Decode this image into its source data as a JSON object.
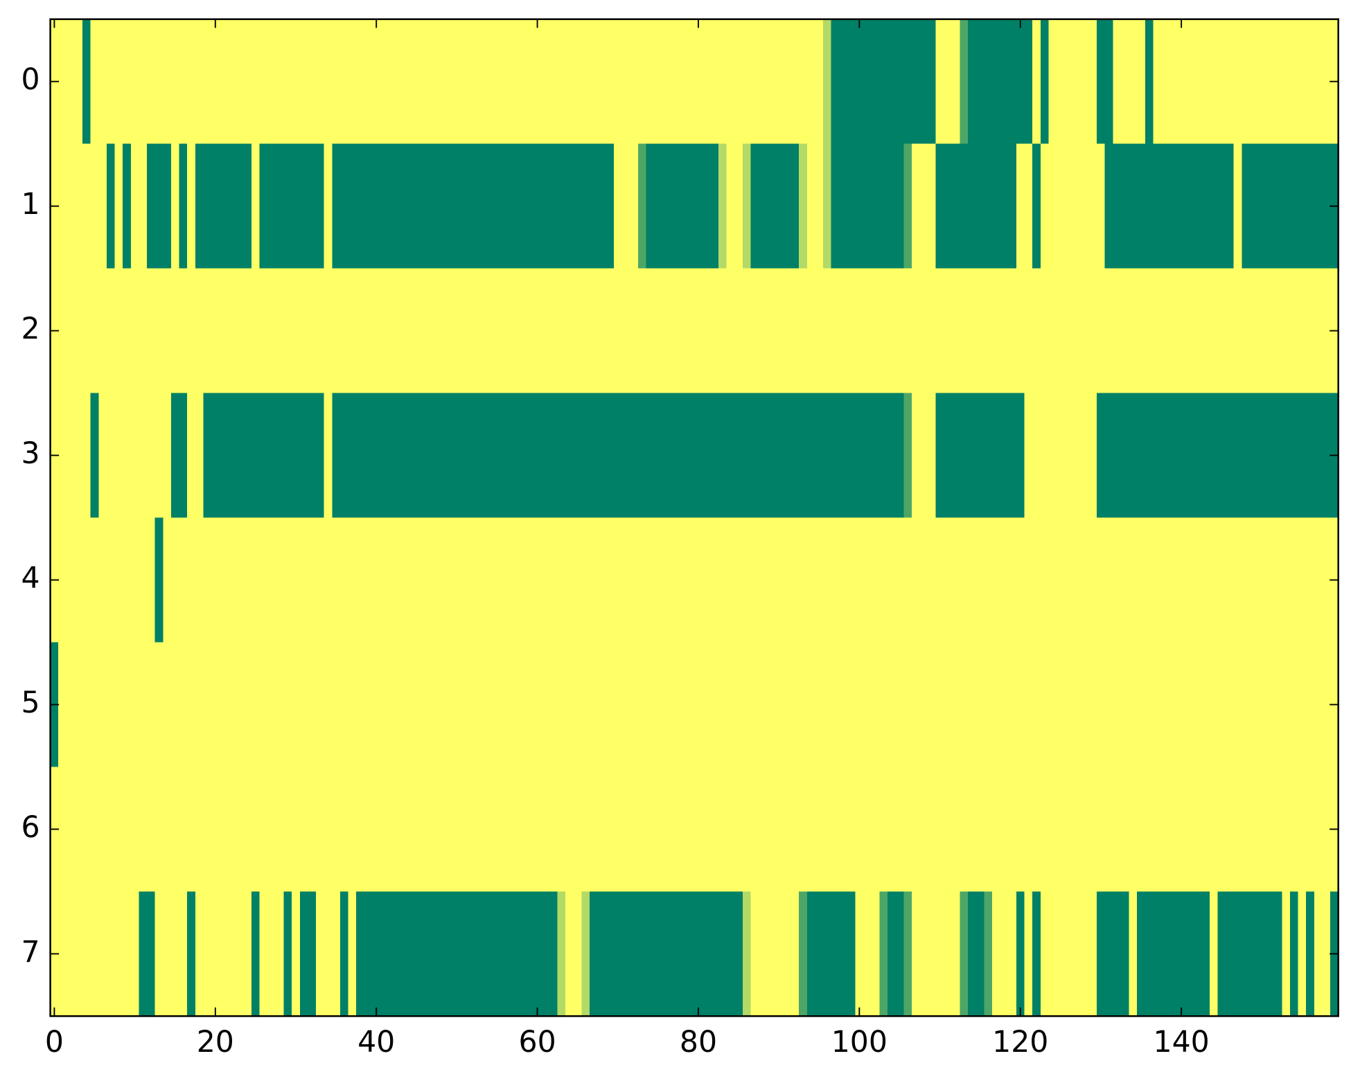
{
  "chart_data": {
    "type": "heatmap",
    "colormap": "summer",
    "vlim": [
      0,
      1
    ],
    "xlim": [
      -0.5,
      159.5
    ],
    "ylim": [
      7.5,
      -0.5
    ],
    "xticks": [
      0,
      20,
      40,
      60,
      80,
      100,
      120,
      140
    ],
    "yticks": [
      0,
      1,
      2,
      3,
      4,
      5,
      6,
      7
    ],
    "values": [
      [
        1,
        1,
        1,
        1,
        0,
        1,
        1,
        1,
        1,
        1,
        1,
        1,
        1,
        1,
        1,
        1,
        1,
        1,
        1,
        1,
        1,
        1,
        1,
        1,
        1,
        1,
        1,
        1,
        1,
        1,
        1,
        1,
        1,
        1,
        1,
        1,
        1,
        1,
        1,
        1,
        1,
        1,
        1,
        1,
        1,
        1,
        1,
        1,
        1,
        1,
        1,
        1,
        1,
        1,
        1,
        1,
        1,
        1,
        1,
        1,
        1,
        1,
        1,
        1,
        1,
        1,
        1,
        1,
        1,
        1,
        1,
        1,
        1,
        1,
        1,
        1,
        1,
        1,
        1,
        1,
        1,
        1,
        1,
        1,
        1,
        1,
        1,
        1,
        1,
        1,
        1,
        1,
        1,
        1,
        1,
        1,
        0.7,
        0,
        0,
        0,
        0,
        0,
        0,
        0,
        0,
        0,
        0,
        0,
        0,
        0,
        1,
        1,
        1,
        0.3,
        0,
        0,
        0,
        0,
        0,
        0,
        0,
        0,
        1,
        0,
        1,
        1,
        1,
        1,
        1,
        1,
        0,
        0,
        1,
        1,
        1,
        1,
        0,
        1,
        1,
        1,
        1,
        1,
        1,
        1,
        1,
        1,
        1,
        1,
        1,
        1,
        1,
        1,
        1,
        1,
        1,
        1,
        1,
        1,
        1,
        1
      ],
      [
        1,
        1,
        1,
        1,
        1,
        1,
        1,
        0,
        1,
        0,
        1,
        1,
        0,
        0,
        0,
        1,
        0,
        1,
        0,
        0,
        0,
        0,
        0,
        0,
        0,
        1,
        0,
        0,
        0,
        0,
        0,
        0,
        0,
        0,
        1,
        0,
        0,
        0,
        0,
        0,
        0,
        0,
        0,
        0,
        0,
        0,
        0,
        0,
        0,
        0,
        0,
        0,
        0,
        0,
        0,
        0,
        0,
        0,
        0,
        0,
        0,
        0,
        0,
        0,
        0,
        0,
        0,
        0,
        0,
        0,
        1,
        1,
        1,
        0.3,
        0,
        0,
        0,
        0,
        0,
        0,
        0,
        0,
        0,
        0.7,
        1,
        1,
        0.7,
        0,
        0,
        0,
        0,
        0,
        0,
        0.7,
        1,
        1,
        0.7,
        0,
        0,
        0,
        0,
        0,
        0,
        0,
        0,
        0,
        0.3,
        1,
        1,
        1,
        0,
        0,
        0,
        0,
        0,
        0,
        0,
        0,
        0,
        0,
        1,
        1,
        0,
        1,
        1,
        1,
        1,
        1,
        1,
        1,
        1,
        0,
        0,
        0,
        0,
        0,
        0,
        0,
        0,
        0,
        0,
        0,
        0,
        0,
        0,
        0,
        0,
        1,
        0,
        0,
        0,
        0,
        0,
        0,
        0,
        0,
        0,
        0,
        0,
        0
      ],
      [
        1,
        1,
        1,
        1,
        1,
        1,
        1,
        1,
        1,
        1,
        1,
        1,
        1,
        1,
        1,
        1,
        1,
        1,
        1,
        1,
        1,
        1,
        1,
        1,
        1,
        1,
        1,
        1,
        1,
        1,
        1,
        1,
        1,
        1,
        1,
        1,
        1,
        1,
        1,
        1,
        1,
        1,
        1,
        1,
        1,
        1,
        1,
        1,
        1,
        1,
        1,
        1,
        1,
        1,
        1,
        1,
        1,
        1,
        1,
        1,
        1,
        1,
        1,
        1,
        1,
        1,
        1,
        1,
        1,
        1,
        1,
        1,
        1,
        1,
        1,
        1,
        1,
        1,
        1,
        1,
        1,
        1,
        1,
        1,
        1,
        1,
        1,
        1,
        1,
        1,
        1,
        1,
        1,
        1,
        1,
        1,
        1,
        1,
        1,
        1,
        1,
        1,
        1,
        1,
        1,
        1,
        1,
        1,
        1,
        1,
        1,
        1,
        1,
        1,
        1,
        1,
        1,
        1,
        1,
        1,
        1,
        1,
        1,
        1,
        1,
        1,
        1,
        1,
        1,
        1,
        1,
        1,
        1,
        1,
        1,
        1,
        1,
        1,
        1,
        1,
        1,
        1,
        1,
        1,
        1,
        1,
        1,
        1,
        1,
        1,
        1,
        1,
        1,
        1,
        1,
        1,
        1,
        1,
        1,
        1
      ],
      [
        1,
        1,
        1,
        1,
        1,
        0,
        1,
        1,
        1,
        1,
        1,
        1,
        1,
        1,
        1,
        0,
        0,
        1,
        1,
        0,
        0,
        0,
        0,
        0,
        0,
        0,
        0,
        0,
        0,
        0,
        0,
        0,
        0,
        0,
        1,
        0,
        0,
        0,
        0,
        0,
        0,
        0,
        0,
        0,
        0,
        0,
        0,
        0,
        0,
        0,
        0,
        0,
        0,
        0,
        0,
        0,
        0,
        0,
        0,
        0,
        0,
        0,
        0,
        0,
        0,
        0,
        0,
        0,
        0,
        0,
        0,
        0,
        0,
        0,
        0,
        0,
        0,
        0,
        0,
        0,
        0,
        0,
        0,
        0,
        0,
        0,
        0,
        0,
        0,
        0,
        0,
        0,
        0,
        0,
        0,
        0,
        0,
        0,
        0,
        0,
        0,
        0,
        0,
        0,
        0,
        0,
        0.3,
        1,
        1,
        1,
        0,
        0,
        0,
        0,
        0,
        0,
        0,
        0,
        0,
        0,
        0,
        1,
        1,
        1,
        1,
        1,
        1,
        1,
        1,
        1,
        0,
        0,
        0,
        0,
        0,
        0,
        0,
        0,
        0,
        0,
        0,
        0,
        0,
        0,
        0,
        0,
        0,
        0,
        0,
        0,
        0,
        0,
        0,
        0,
        0,
        0,
        0,
        0,
        0,
        0
      ],
      [
        1,
        1,
        1,
        1,
        1,
        1,
        1,
        1,
        1,
        1,
        1,
        1,
        1,
        0,
        1,
        1,
        1,
        1,
        1,
        1,
        1,
        1,
        1,
        1,
        1,
        1,
        1,
        1,
        1,
        1,
        1,
        1,
        1,
        1,
        1,
        1,
        1,
        1,
        1,
        1,
        1,
        1,
        1,
        1,
        1,
        1,
        1,
        1,
        1,
        1,
        1,
        1,
        1,
        1,
        1,
        1,
        1,
        1,
        1,
        1,
        1,
        1,
        1,
        1,
        1,
        1,
        1,
        1,
        1,
        1,
        1,
        1,
        1,
        1,
        1,
        1,
        1,
        1,
        1,
        1,
        1,
        1,
        1,
        1,
        1,
        1,
        1,
        1,
        1,
        1,
        1,
        1,
        1,
        1,
        1,
        1,
        1,
        1,
        1,
        1,
        1,
        1,
        1,
        1,
        1,
        1,
        1,
        1,
        1,
        1,
        1,
        1,
        1,
        1,
        1,
        1,
        1,
        1,
        1,
        1,
        1,
        1,
        1,
        1,
        1,
        1,
        1,
        1,
        1,
        1,
        1,
        1,
        1,
        1,
        1,
        1,
        1,
        1,
        1,
        1,
        1,
        1,
        1,
        1,
        1,
        1,
        1,
        1,
        1,
        1,
        1,
        1,
        1,
        1,
        1,
        1,
        1,
        1,
        1,
        1
      ],
      [
        0,
        1,
        1,
        1,
        1,
        1,
        1,
        1,
        1,
        1,
        1,
        1,
        1,
        1,
        1,
        1,
        1,
        1,
        1,
        1,
        1,
        1,
        1,
        1,
        1,
        1,
        1,
        1,
        1,
        1,
        1,
        1,
        1,
        1,
        1,
        1,
        1,
        1,
        1,
        1,
        1,
        1,
        1,
        1,
        1,
        1,
        1,
        1,
        1,
        1,
        1,
        1,
        1,
        1,
        1,
        1,
        1,
        1,
        1,
        1,
        1,
        1,
        1,
        1,
        1,
        1,
        1,
        1,
        1,
        1,
        1,
        1,
        1,
        1,
        1,
        1,
        1,
        1,
        1,
        1,
        1,
        1,
        1,
        1,
        1,
        1,
        1,
        1,
        1,
        1,
        1,
        1,
        1,
        1,
        1,
        1,
        1,
        1,
        1,
        1,
        1,
        1,
        1,
        1,
        1,
        1,
        1,
        1,
        1,
        1,
        1,
        1,
        1,
        1,
        1,
        1,
        1,
        1,
        1,
        1,
        1,
        1,
        1,
        1,
        1,
        1,
        1,
        1,
        1,
        1,
        1,
        1,
        1,
        1,
        1,
        1,
        1,
        1,
        1,
        1,
        1,
        1,
        1,
        1,
        1,
        1,
        1,
        1,
        1,
        1,
        1,
        1,
        1,
        1,
        1,
        1,
        1,
        1,
        1,
        1
      ],
      [
        1,
        1,
        1,
        1,
        1,
        1,
        1,
        1,
        1,
        1,
        1,
        1,
        1,
        1,
        1,
        1,
        1,
        1,
        1,
        1,
        1,
        1,
        1,
        1,
        1,
        1,
        1,
        1,
        1,
        1,
        1,
        1,
        1,
        1,
        1,
        1,
        1,
        1,
        1,
        1,
        1,
        1,
        1,
        1,
        1,
        1,
        1,
        1,
        1,
        1,
        1,
        1,
        1,
        1,
        1,
        1,
        1,
        1,
        1,
        1,
        1,
        1,
        1,
        1,
        1,
        1,
        1,
        1,
        1,
        1,
        1,
        1,
        1,
        1,
        1,
        1,
        1,
        1,
        1,
        1,
        1,
        1,
        1,
        1,
        1,
        1,
        1,
        1,
        1,
        1,
        1,
        1,
        1,
        1,
        1,
        1,
        1,
        1,
        1,
        1,
        1,
        1,
        1,
        1,
        1,
        1,
        1,
        1,
        1,
        1,
        1,
        1,
        1,
        1,
        1,
        1,
        1,
        1,
        1,
        1,
        1,
        1,
        1,
        1,
        1,
        1,
        1,
        1,
        1,
        1,
        1,
        1,
        1,
        1,
        1,
        1,
        1,
        1,
        1,
        1,
        1,
        1,
        1,
        1,
        1,
        1,
        1,
        1,
        1,
        1,
        1,
        1,
        1,
        1,
        1,
        1,
        1,
        1,
        1,
        1
      ],
      [
        1,
        1,
        1,
        1,
        1,
        1,
        1,
        1,
        1,
        1,
        1,
        0,
        0,
        1,
        1,
        1,
        1,
        0,
        1,
        1,
        1,
        1,
        1,
        1,
        1,
        0,
        1,
        1,
        1,
        0,
        1,
        0,
        0,
        1,
        1,
        1,
        0,
        1,
        0,
        0,
        0,
        0,
        0,
        0,
        0,
        0,
        0,
        0,
        0,
        0,
        0,
        0,
        0,
        0,
        0,
        0,
        0,
        0,
        0,
        0,
        0,
        0,
        0,
        0.7,
        1,
        1,
        0.7,
        0,
        0,
        0,
        0,
        0,
        0,
        0,
        0,
        0,
        0,
        0,
        0,
        0,
        0,
        0,
        0,
        0,
        0,
        0,
        0.7,
        1,
        1,
        1,
        1,
        1,
        1,
        0.3,
        0,
        0,
        0,
        0,
        0,
        0,
        1,
        1,
        1,
        0.3,
        0,
        0,
        0.3,
        1,
        1,
        1,
        1,
        1,
        1,
        0.3,
        0,
        0,
        0.3,
        1,
        1,
        1,
        0,
        1,
        0,
        1,
        1,
        1,
        1,
        1,
        1,
        1,
        0,
        0,
        0,
        0,
        1,
        0,
        0,
        0,
        0,
        0,
        0,
        0,
        0,
        0,
        1,
        0,
        0,
        0,
        0,
        0,
        0,
        0,
        0,
        1,
        0,
        1,
        0,
        1,
        1,
        0
      ]
    ]
  }
}
